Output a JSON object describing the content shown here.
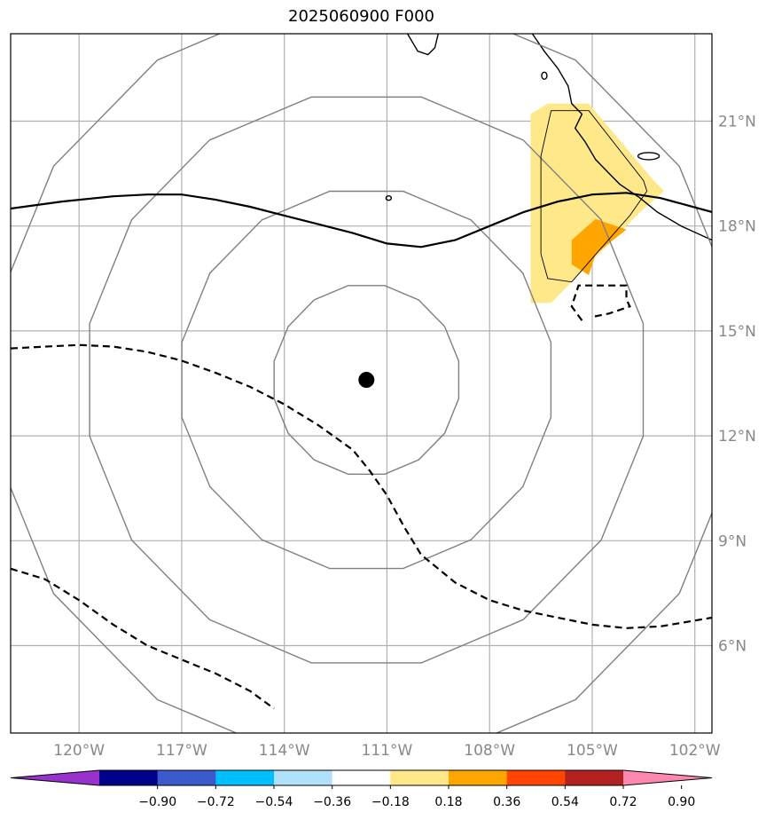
{
  "title": "2025060900 F000",
  "map": {
    "lon_range": [
      -122,
      -101.5
    ],
    "lat_range": [
      3.5,
      23.5
    ],
    "lon_ticks": [
      {
        "value": -120,
        "label": "120°W"
      },
      {
        "value": -117,
        "label": "117°W"
      },
      {
        "value": -114,
        "label": "114°W"
      },
      {
        "value": -111,
        "label": "111°W"
      },
      {
        "value": -108,
        "label": "108°W"
      },
      {
        "value": -105,
        "label": "105°W"
      },
      {
        "value": -102,
        "label": "102°W"
      }
    ],
    "lat_ticks": [
      {
        "value": 6,
        "label": "6°N"
      },
      {
        "value": 9,
        "label": "9°N"
      },
      {
        "value": 12,
        "label": "12°N"
      },
      {
        "value": 15,
        "label": "15°N"
      },
      {
        "value": 18,
        "label": "18°N"
      },
      {
        "value": 21,
        "label": "21°N"
      }
    ],
    "grid": true,
    "storm_center": {
      "lon": -111.6,
      "lat": 13.6
    },
    "range_rings_deg": [
      2.75,
      5.5,
      8.25,
      11.0
    ],
    "colors": {
      "grid": "#b0b0b0",
      "ring": "#808080",
      "coast": "#000000",
      "fill_low": "#ffe88a",
      "fill_mid": "#ffa500"
    }
  },
  "colorbar": {
    "ticks": [
      "−0.90",
      "−0.72",
      "−0.54",
      "−0.36",
      "−0.18",
      "0.18",
      "0.36",
      "0.54",
      "0.72",
      "0.90"
    ],
    "colors": [
      "#9932cc",
      "#00008b",
      "#3b5bcc",
      "#00bfff",
      "#b0e0fa",
      "#ffffff",
      "#ffe88a",
      "#ffa500",
      "#ff4500",
      "#b22222",
      "#ff88b0"
    ]
  }
}
